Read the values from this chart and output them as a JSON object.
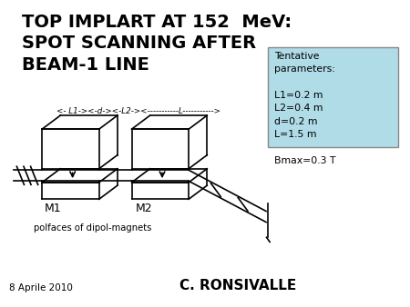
{
  "title_line1": "TOP IMPLART AT 152  MeV:",
  "title_line2": "SPOT SCANNING AFTER",
  "title_line3": "BEAM-1 LINE",
  "title_fontsize": 14,
  "param_box_text": "Tentative\nparameters:\n\nL1=0.2 m\nL2=0.4 m\nd=0.2 m\nL=1.5 m\n\nBmax=0.3 T",
  "param_box_color": "#b0dce8",
  "arrow_label": "<- L1-><-d-><-L2-><-----------L----------->",
  "label_M1": "M1",
  "label_M2": "M2",
  "label_polfaces": "polfaces of dipol-magnets",
  "author": "C. RONSIVALLE",
  "date": "8 Aprile 2010",
  "bg_color": "#ffffff",
  "diagram_color": "#000000",
  "text_color": "#000000"
}
